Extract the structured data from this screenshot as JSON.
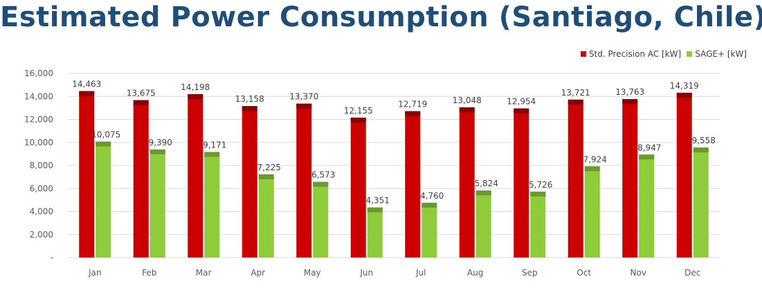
{
  "title": "Estimated Power Consumption (Santiago, Chile)",
  "colors": {
    "series1": "#cc0000",
    "series1_top": "#8b0000",
    "series2": "#8fcc3c",
    "series2_top": "#6a9a2a",
    "grid": "#d9d9d9",
    "title": "#1f4e79"
  },
  "chart_data": {
    "type": "bar",
    "title": "Estimated Power Consumption (Santiago, Chile)",
    "categories": [
      "Jan",
      "Feb",
      "Mar",
      "Apr",
      "May",
      "Jun",
      "Jul",
      "Aug",
      "Sep",
      "Oct",
      "Nov",
      "Dec"
    ],
    "series": [
      {
        "name": "Std. Precision AC [kW]",
        "values": [
          14463,
          13675,
          14198,
          13158,
          13370,
          12155,
          12719,
          13048,
          12954,
          13721,
          13763,
          14319
        ]
      },
      {
        "name": "SAGE+ [kW]",
        "values": [
          10075,
          9390,
          9171,
          7225,
          6573,
          4351,
          4760,
          5824,
          5726,
          7924,
          8947,
          9558
        ]
      }
    ],
    "value_labels": [
      [
        "14,463",
        "13,675",
        "14,198",
        "13,158",
        "13,370",
        "12,155",
        "12,719",
        "13,048",
        "12,954",
        "13,721",
        "13,763",
        "14,319"
      ],
      [
        "10,075",
        "9,390",
        "9,171",
        "7,225",
        "6,573",
        "4,351",
        "4,760",
        "5,824",
        "5,726",
        "7,924",
        "8,947",
        "9,558"
      ]
    ],
    "y_ticks": [
      0,
      2000,
      4000,
      6000,
      8000,
      10000,
      12000,
      14000,
      16000
    ],
    "y_tick_labels": [
      "-",
      "2,000",
      "4,000",
      "6,000",
      "8,000",
      "10,000",
      "12,000",
      "14,000",
      "16,000"
    ],
    "ylim": [
      0,
      16000
    ],
    "grid": true,
    "legend_position": "top-right",
    "xlabel": "",
    "ylabel": ""
  }
}
